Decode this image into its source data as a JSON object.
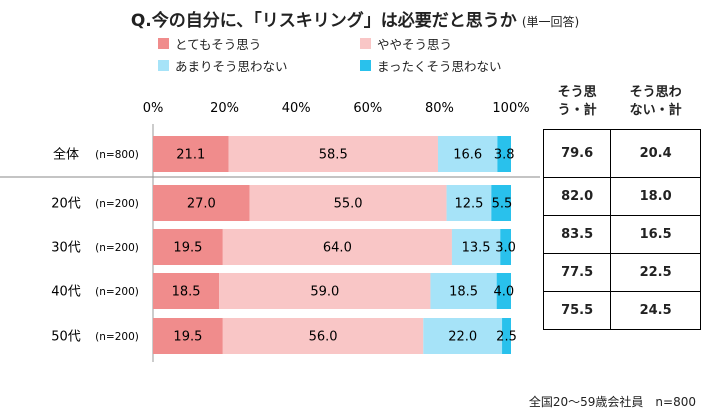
{
  "title": "Q.今の自分に、「リスキリング」は必要だと思うか",
  "title_note": "(単一回答)",
  "footnote": "全国20～59歳会社員　n=800",
  "summary_headers": [
    "そう思う・計",
    "そう思わない・計"
  ],
  "chart_data": {
    "type": "bar",
    "orientation": "horizontal",
    "stacked": true,
    "percent": true,
    "xlim": [
      0,
      100
    ],
    "ticks": [
      "0%",
      "20%",
      "40%",
      "60%",
      "80%",
      "100%"
    ],
    "categories": [
      "全体",
      "20代",
      "30代",
      "40代",
      "50代"
    ],
    "sample_sizes": [
      "(n=800)",
      "(n=200)",
      "(n=200)",
      "(n=200)",
      "(n=200)"
    ],
    "series": [
      {
        "name": "とてもそう思う",
        "color": "#f08c8c",
        "values": [
          21.1,
          27.0,
          19.5,
          18.5,
          19.5
        ]
      },
      {
        "name": "ややそう思う",
        "color": "#f9c6c6",
        "values": [
          58.5,
          55.0,
          64.0,
          59.0,
          56.0
        ]
      },
      {
        "name": "あまりそう思わない",
        "color": "#a6e3f8",
        "values": [
          16.6,
          12.5,
          13.5,
          18.5,
          22.0
        ]
      },
      {
        "name": "まったくそう思わない",
        "color": "#29c1ec",
        "values": [
          3.8,
          5.5,
          3.0,
          4.0,
          2.5
        ]
      }
    ],
    "legend_position": "top",
    "summary": {
      "agree_total": [
        79.6,
        82.0,
        83.5,
        77.5,
        75.5
      ],
      "disagree_total": [
        20.4,
        18.0,
        16.5,
        22.5,
        24.5
      ]
    }
  }
}
